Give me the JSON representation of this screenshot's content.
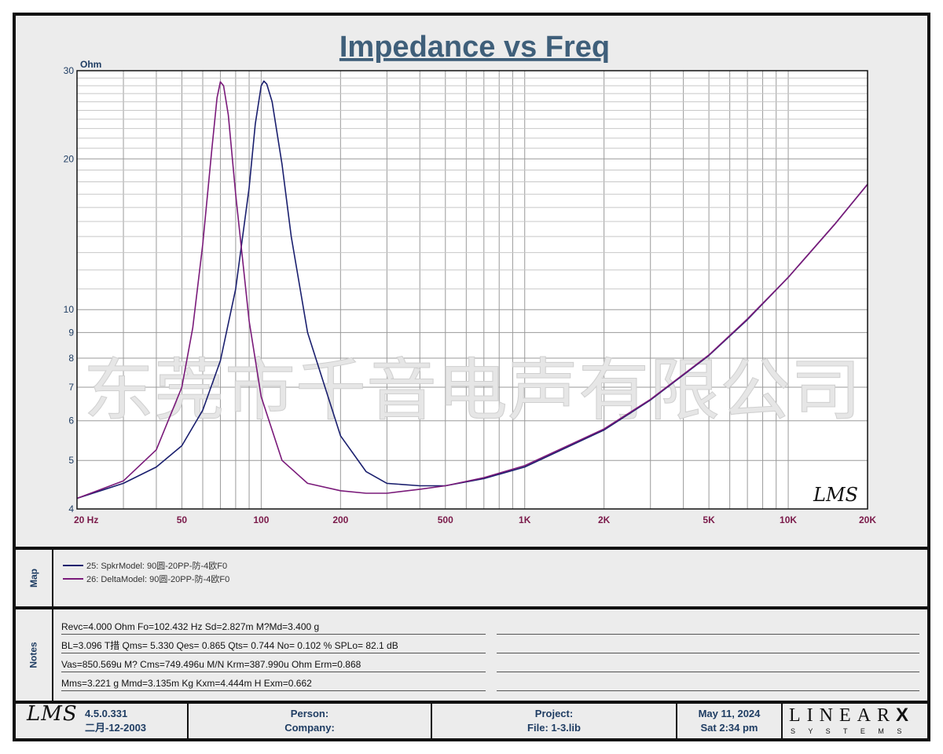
{
  "chart_data": {
    "type": "line",
    "title": "Impedance vs Freq",
    "ylabel": "Ohm",
    "xlabel": "",
    "x_scale": "log",
    "y_scale": "log",
    "xlim": [
      20,
      20000
    ],
    "ylim": [
      4,
      30
    ],
    "grid": true,
    "x_tick_labels": [
      "20  Hz",
      "50",
      "100",
      "200",
      "500",
      "1K",
      "2K",
      "5K",
      "10K",
      "20K"
    ],
    "y_tick_labels": [
      "30",
      "20",
      "10",
      "9",
      "8",
      "7",
      "6",
      "5",
      "4"
    ],
    "watermark_text": "东莞市千音电声有限公司",
    "logo_text": "LMS",
    "series": [
      {
        "name": "25: SpkrModel: 90圆-20PP-防-4欧F0",
        "color": "#1a1f6e",
        "x": [
          20,
          30,
          40,
          50,
          60,
          70,
          80,
          90,
          95,
          100,
          102.4,
          105,
          110,
          120,
          130,
          150,
          200,
          250,
          300,
          400,
          500,
          700,
          1000,
          2000,
          3000,
          5000,
          7000,
          10000,
          15000,
          20000
        ],
        "y": [
          4.2,
          4.5,
          4.85,
          5.35,
          6.3,
          7.9,
          11.0,
          17.5,
          23.5,
          28.0,
          28.6,
          28.2,
          26.0,
          19.5,
          14.0,
          9.0,
          5.6,
          4.75,
          4.5,
          4.45,
          4.45,
          4.6,
          4.85,
          5.75,
          6.6,
          8.1,
          9.55,
          11.6,
          14.8,
          17.8
        ]
      },
      {
        "name": "26: DeltaModel: 90圆-20PP-防-4欧F0",
        "color": "#7a1a7a",
        "x": [
          20,
          30,
          40,
          50,
          55,
          60,
          65,
          68,
          70,
          72,
          75,
          80,
          90,
          100,
          120,
          150,
          200,
          250,
          300,
          400,
          500,
          700,
          1000,
          2000,
          3000,
          5000,
          7000,
          10000,
          15000,
          20000
        ],
        "y": [
          4.2,
          4.55,
          5.25,
          7.0,
          9.2,
          13.5,
          21.0,
          26.5,
          28.5,
          28.0,
          24.5,
          17.0,
          9.5,
          6.7,
          5.0,
          4.5,
          4.35,
          4.3,
          4.3,
          4.38,
          4.45,
          4.62,
          4.88,
          5.78,
          6.62,
          8.12,
          9.58,
          11.6,
          14.8,
          17.8
        ]
      }
    ]
  },
  "map_panel": {
    "label": "Map",
    "legend": [
      {
        "text": "25: SpkrModel: 90圆-20PP-防-4欧F0",
        "color": "#1a1f6e"
      },
      {
        "text": "26: DeltaModel: 90圆-20PP-防-4欧F0",
        "color": "#7a1a7a"
      }
    ]
  },
  "notes_panel": {
    "label": "Notes",
    "lines": [
      "Revc=4.000 Ohm  Fo=102.432 Hz  Sd=2.827m M?Md=3.400 g",
      "BL=3.096 T措  Qms= 5.330  Qes= 0.865  Qts= 0.744  No= 0.102 %  SPLo= 82.1 dB",
      "Vas=850.569u M? Cms=749.496u M/N  Krm=387.990u Ohm  Erm=0.868",
      "Mms=3.221 g  Mmd=3.135m Kg  Kxm=4.444m H  Exm=0.662"
    ]
  },
  "footer": {
    "logo": "LMS",
    "version": "4.5.0.331",
    "build_date": "二月-12-2003",
    "person_label": "Person:",
    "company_label": "Company:",
    "project_label": "Project:",
    "file_label": "File: 1-3.lib",
    "date": "May 11, 2024",
    "time": "Sat  2:34 pm",
    "brand": "LINEAR",
    "brand_x": "X",
    "brand_sub": "S Y S T E M S"
  }
}
